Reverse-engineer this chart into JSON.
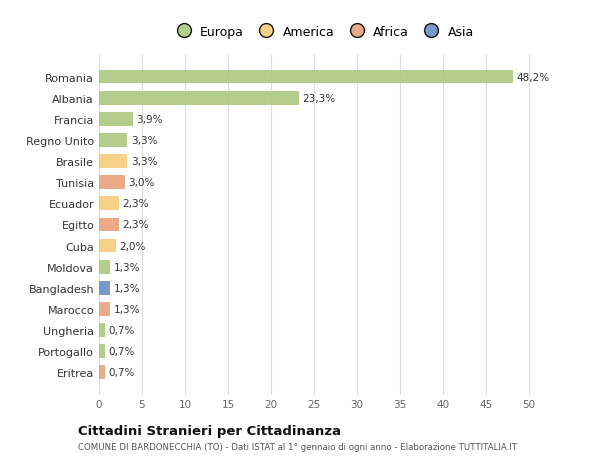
{
  "countries": [
    "Romania",
    "Albania",
    "Francia",
    "Regno Unito",
    "Brasile",
    "Tunisia",
    "Ecuador",
    "Egitto",
    "Cuba",
    "Moldova",
    "Bangladesh",
    "Marocco",
    "Ungheria",
    "Portogallo",
    "Eritrea"
  ],
  "values": [
    48.2,
    23.3,
    3.9,
    3.3,
    3.3,
    3.0,
    2.3,
    2.3,
    2.0,
    1.3,
    1.3,
    1.3,
    0.7,
    0.7,
    0.7
  ],
  "labels": [
    "48,2%",
    "23,3%",
    "3,9%",
    "3,3%",
    "3,3%",
    "3,0%",
    "2,3%",
    "2,3%",
    "2,0%",
    "1,3%",
    "1,3%",
    "1,3%",
    "0,7%",
    "0,7%",
    "0,7%"
  ],
  "categories": [
    "Europa",
    "Europa",
    "Europa",
    "Europa",
    "America",
    "Africa",
    "America",
    "Africa",
    "America",
    "Europa",
    "Asia",
    "Africa",
    "Europa",
    "Europa",
    "Africa"
  ],
  "colors": {
    "Europa": "#adc87f",
    "America": "#f5cc7a",
    "Africa": "#e8a07a",
    "Asia": "#6b8ec8"
  },
  "legend_order": [
    "Europa",
    "America",
    "Africa",
    "Asia"
  ],
  "legend_colors": [
    "#adc87f",
    "#f5cc7a",
    "#e8a07a",
    "#6b8ec8"
  ],
  "title": "Cittadini Stranieri per Cittadinanza",
  "subtitle": "COMUNE DI BARDONECCHIA (TO) - Dati ISTAT al 1° gennaio di ogni anno - Elaborazione TUTTITALIA.IT",
  "xlim": [
    0,
    52
  ],
  "xticks": [
    0,
    5,
    10,
    15,
    20,
    25,
    30,
    35,
    40,
    45,
    50
  ],
  "background_color": "#ffffff",
  "grid_color": "#dddddd"
}
